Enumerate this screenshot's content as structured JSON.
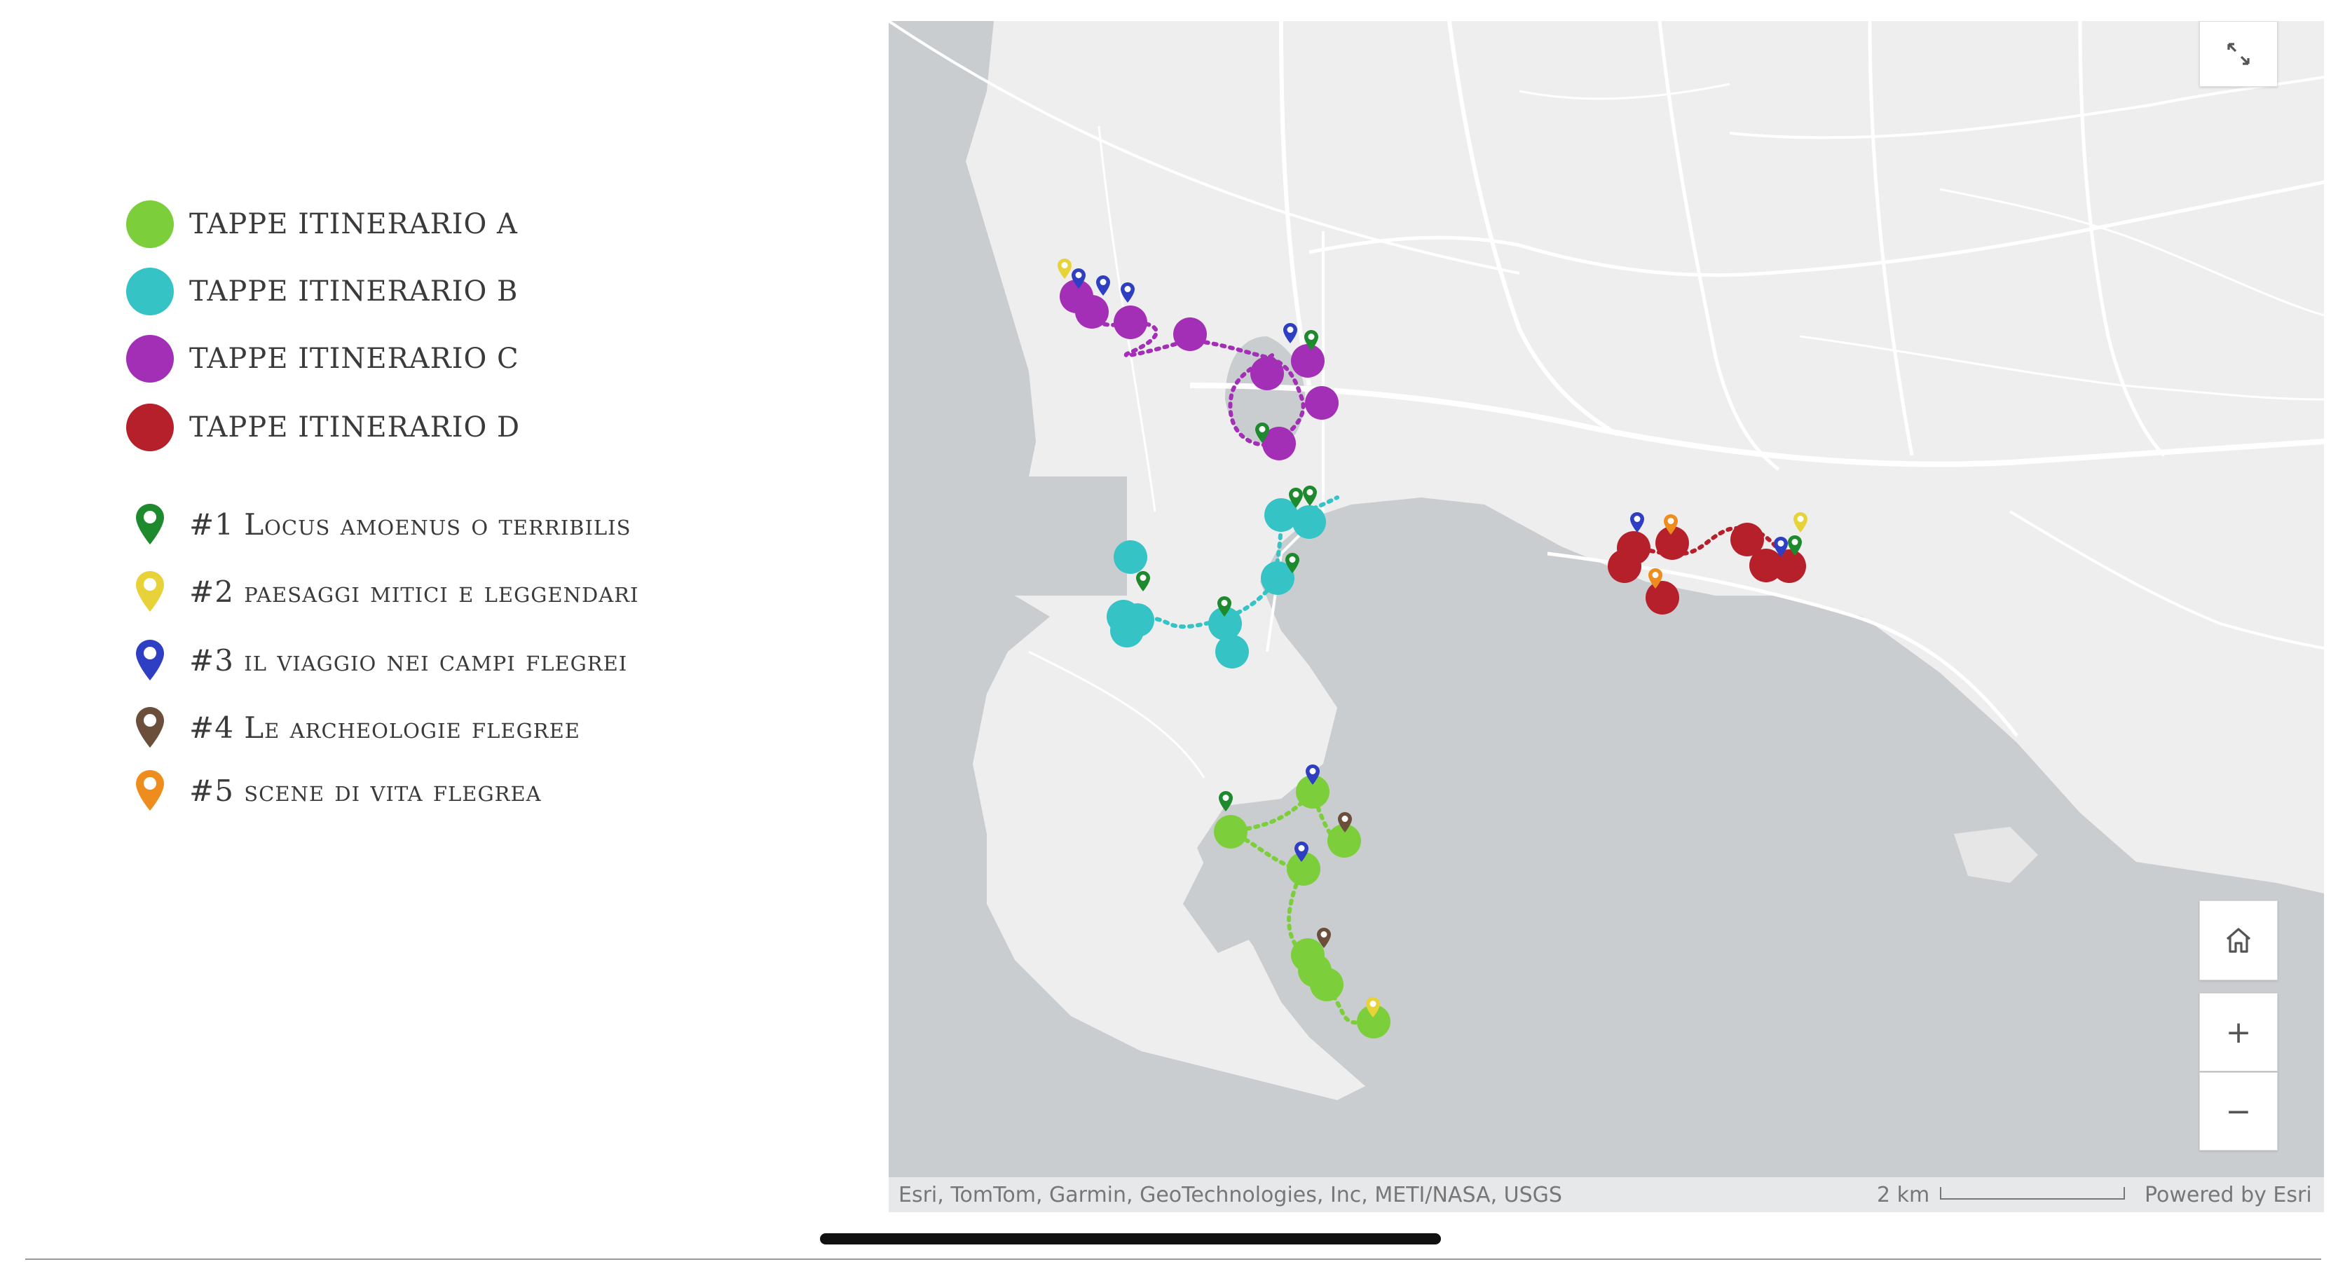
{
  "legend": {
    "itineraries": [
      {
        "label": "TAPPE ITINERARIO A",
        "color": "#7ccf3a",
        "icon": "green-circle-icon"
      },
      {
        "label": "TAPPE ITINERARIO B",
        "color": "#35c3c6",
        "icon": "teal-circle-icon"
      },
      {
        "label": "TAPPE ITINERARIO C",
        "color": "#a22fb5",
        "icon": "purple-circle-icon"
      },
      {
        "label": "TAPPE ITINERARIO D",
        "color": "#b5202a",
        "icon": "red-circle-icon"
      }
    ],
    "themes": [
      {
        "label": "#1 Locus amoenus o terribilis",
        "color": "#1e8a2e",
        "icon": "map-pin-icon"
      },
      {
        "label": "#2 paesaggi mitici e leggendari",
        "color": "#e8d23a",
        "icon": "map-pin-icon"
      },
      {
        "label": "#3 il viaggio nei campi flegrei",
        "color": "#2f3fc4",
        "icon": "map-pin-icon"
      },
      {
        "label": "#4 Le archeologie flegree",
        "color": "#6b4f3a",
        "icon": "map-pin-icon"
      },
      {
        "label": "#5 scene di vita flegrea",
        "color": "#ee8d1e",
        "icon": "map-pin-icon"
      }
    ]
  },
  "map": {
    "attribution": "Esri, TomTom, Garmin, GeoTechnologies, Inc, METI/NASA, USGS",
    "scale_label": "2 km",
    "powered_by": "Powered by Esri",
    "zoom_in": "+",
    "zoom_out": "−",
    "land_color": "#eeeeee",
    "water_color": "#c9cdd0",
    "road_color": "#ffffff"
  }
}
